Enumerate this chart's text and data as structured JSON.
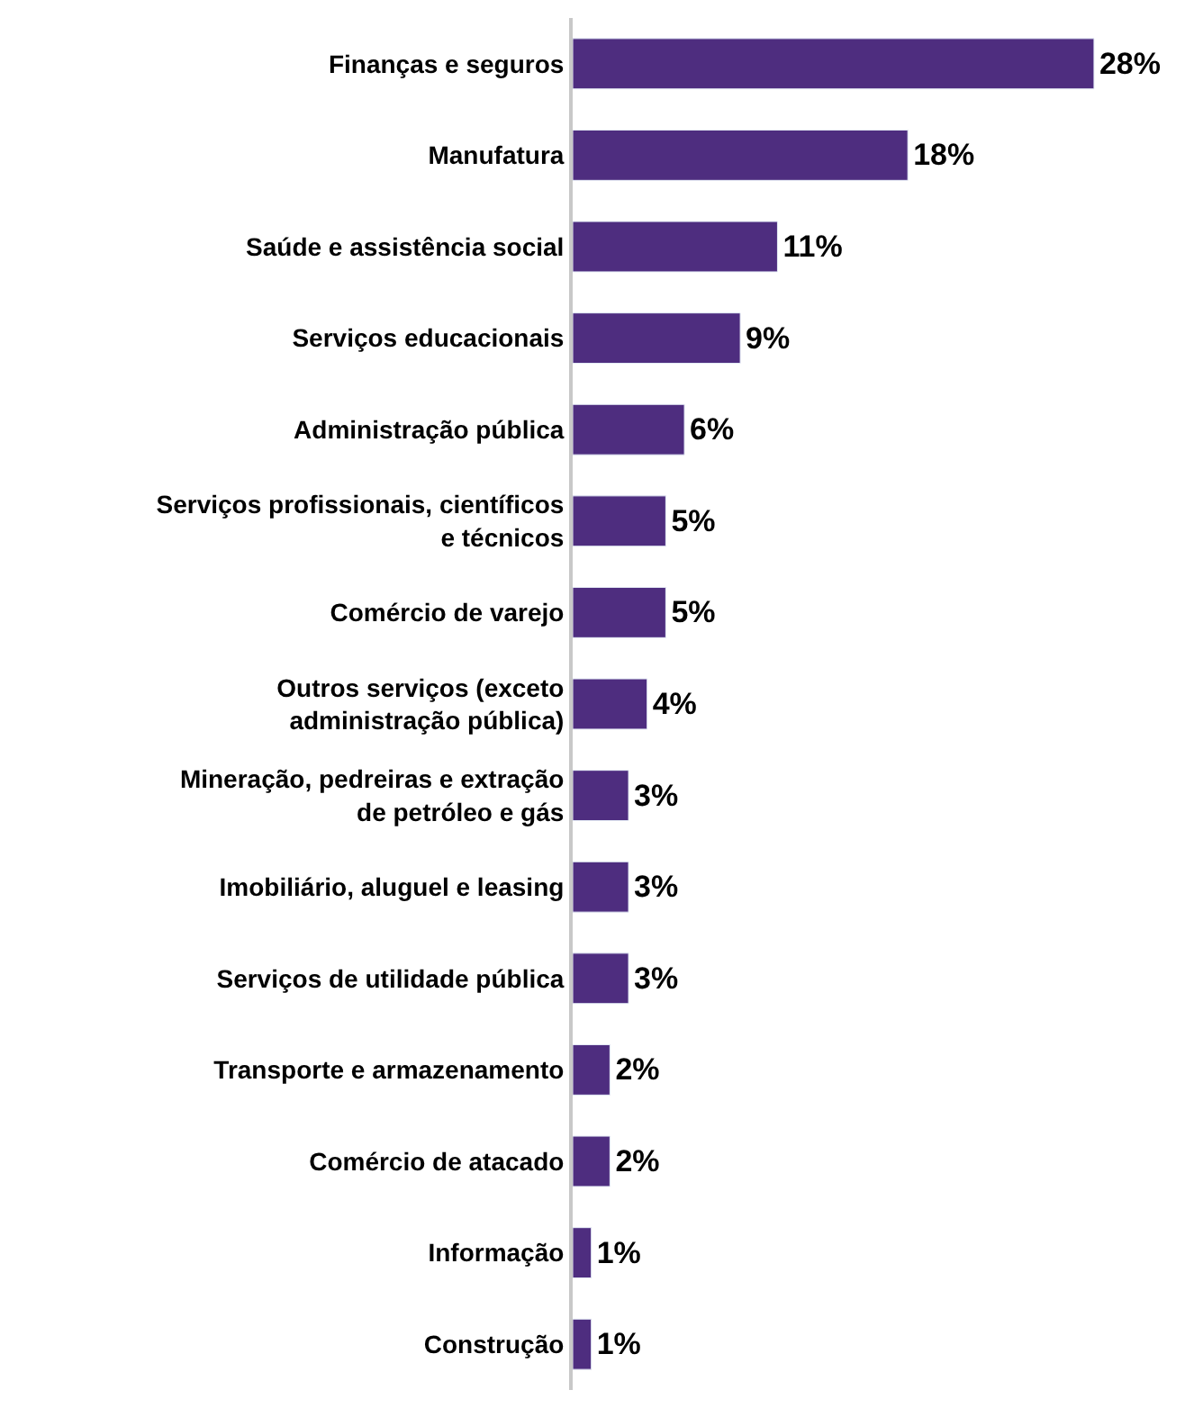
{
  "chart_data": {
    "type": "bar",
    "orientation": "horizontal",
    "categories": [
      "Finanças e seguros",
      "Manufatura",
      "Saúde e assistência social",
      "Serviços educacionais",
      "Administração pública",
      "Serviços profissionais, científicos\ne técnicos",
      "Comércio de varejo",
      "Outros serviços (exceto\nadministração pública)",
      "Mineração, pedreiras e extração\nde petróleo e gás",
      "Imobiliário, aluguel e leasing",
      "Serviços de utilidade pública",
      "Transporte e armazenamento",
      "Comércio de atacado",
      "Informação",
      "Construção"
    ],
    "values": [
      28,
      18,
      11,
      9,
      6,
      5,
      5,
      4,
      3,
      3,
      3,
      2,
      2,
      1,
      1
    ],
    "value_labels": [
      "28%",
      "18%",
      "11%",
      "9%",
      "6%",
      "5%",
      "5%",
      "4%",
      "3%",
      "3%",
      "3%",
      "2%",
      "2%",
      "1%",
      "1%"
    ],
    "color": "#4e2d7f",
    "tick_labels": "y"
  }
}
